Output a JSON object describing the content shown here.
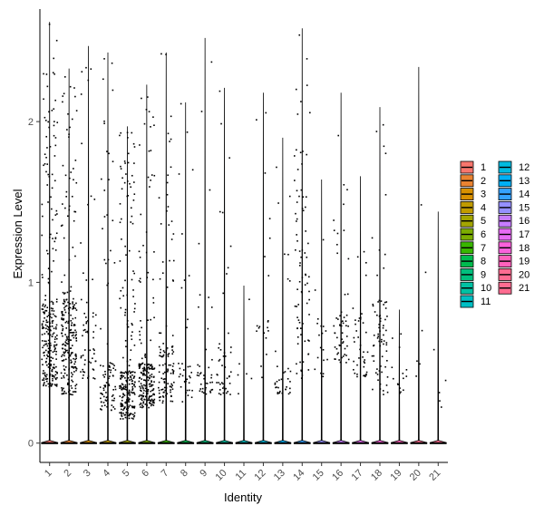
{
  "chart_data": {
    "type": "violin-jitter",
    "title": "",
    "xlabel": "Identity",
    "ylabel": "Expression Level",
    "ylim": [
      -0.12,
      2.7
    ],
    "yticks": [
      0,
      1,
      2
    ],
    "grid": false,
    "legend_position": "right",
    "categories": [
      "1",
      "2",
      "3",
      "4",
      "5",
      "6",
      "7",
      "8",
      "9",
      "10",
      "11",
      "12",
      "13",
      "14",
      "15",
      "16",
      "17",
      "18",
      "19",
      "20",
      "21"
    ],
    "colors": [
      "#F8766D",
      "#EA8331",
      "#D89000",
      "#C09B00",
      "#A3A500",
      "#7CAE00",
      "#39B600",
      "#00BB4E",
      "#00BF7D",
      "#00C1A3",
      "#00BFC4",
      "#00BAE0",
      "#00B0F6",
      "#35A2FF",
      "#9590FF",
      "#C77CFF",
      "#E76BF3",
      "#FA62DB",
      "#FF62BC",
      "#FF6C91",
      "#FF6C91"
    ],
    "max_values": [
      2.62,
      2.33,
      2.47,
      2.43,
      1.97,
      2.23,
      2.43,
      2.12,
      2.52,
      2.21,
      0.98,
      2.18,
      1.9,
      2.58,
      1.64,
      2.18,
      1.66,
      2.09,
      0.83,
      2.34,
      1.44
    ],
    "point_density": [
      260,
      240,
      60,
      90,
      230,
      200,
      110,
      35,
      40,
      45,
      6,
      20,
      35,
      80,
      18,
      55,
      40,
      70,
      15,
      6,
      5
    ],
    "low_band": [
      [
        0.35,
        0.9
      ],
      [
        0.3,
        0.9
      ],
      [
        0.4,
        0.8
      ],
      [
        0.2,
        0.5
      ],
      [
        0.15,
        0.45
      ],
      [
        0.22,
        0.5
      ],
      [
        0.25,
        0.6
      ],
      [
        0.25,
        0.5
      ],
      [
        0.3,
        0.5
      ],
      [
        0.3,
        0.6
      ],
      [
        0.3,
        0.5
      ],
      [
        0.4,
        0.9
      ],
      [
        0.3,
        0.5
      ],
      [
        0.4,
        1.6
      ],
      [
        0.4,
        0.8
      ],
      [
        0.5,
        0.8
      ],
      [
        0.4,
        0.8
      ],
      [
        0.3,
        0.9
      ],
      [
        0.3,
        0.5
      ],
      [
        0.4,
        0.8
      ],
      [
        0.2,
        0.4
      ]
    ],
    "legend_entries": [
      "1",
      "2",
      "3",
      "4",
      "5",
      "6",
      "7",
      "8",
      "9",
      "10",
      "11",
      "12",
      "13",
      "14",
      "15",
      "16",
      "17",
      "18",
      "19",
      "20",
      "21"
    ]
  }
}
